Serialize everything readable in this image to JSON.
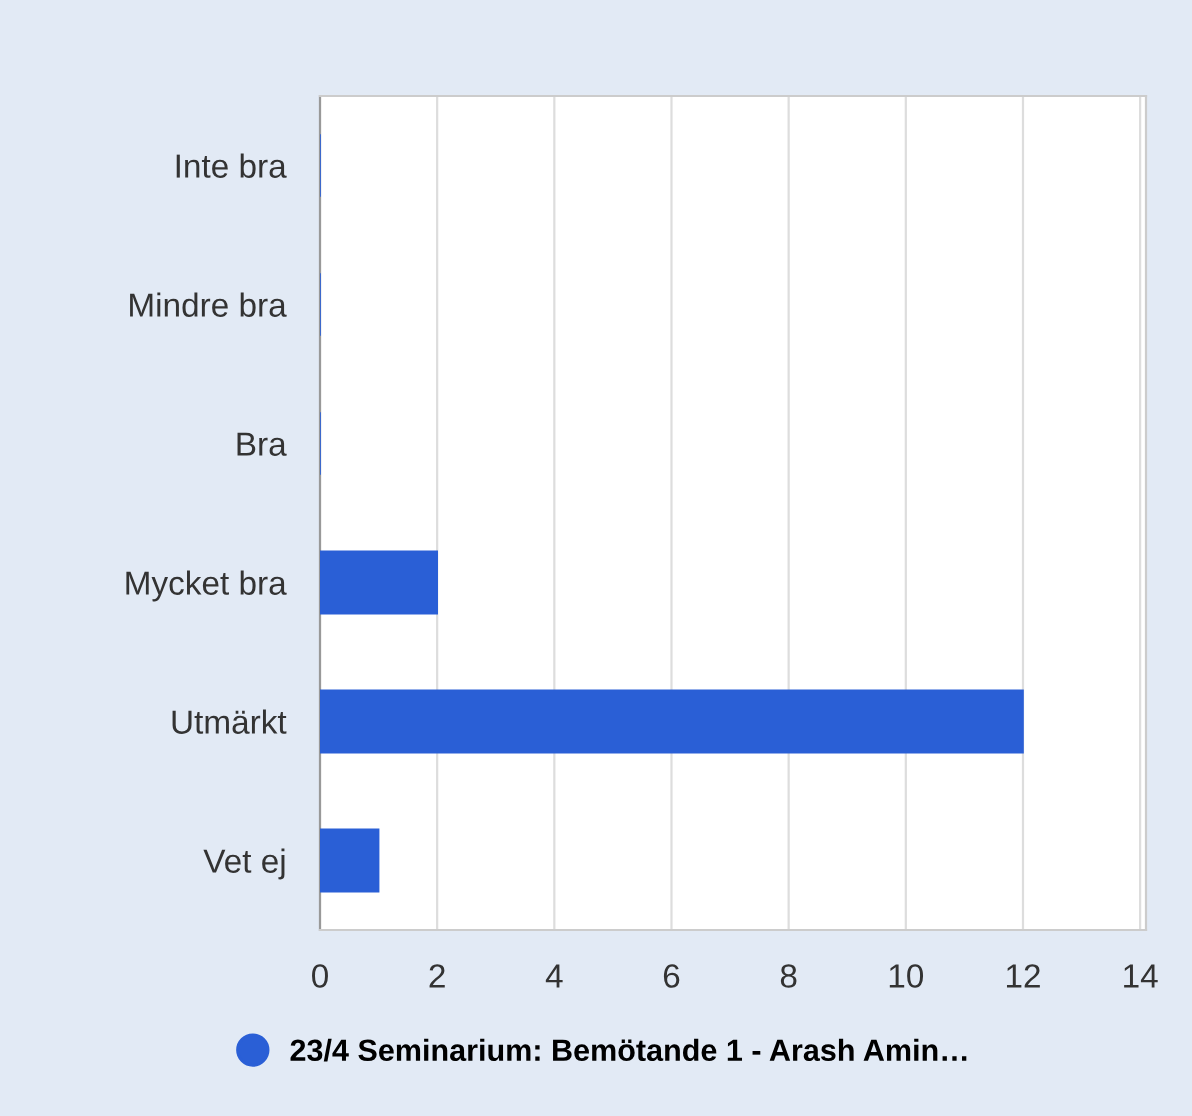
{
  "chart_data": {
    "type": "bar",
    "orientation": "horizontal",
    "categories": [
      "Inte bra",
      "Mindre bra",
      "Bra",
      "Mycket bra",
      "Utmärkt",
      "Vet ej"
    ],
    "series": [
      {
        "name": "23/4 Seminarium: Bemötande 1 - Arash Amin…",
        "color": "#2a5fd6",
        "values": [
          0,
          0,
          0,
          2,
          12,
          1
        ]
      }
    ],
    "xlim": [
      0,
      14.1
    ],
    "xticks": [
      0,
      2,
      4,
      6,
      8,
      10,
      12,
      14
    ],
    "grid": "x",
    "legend": "bottom"
  }
}
